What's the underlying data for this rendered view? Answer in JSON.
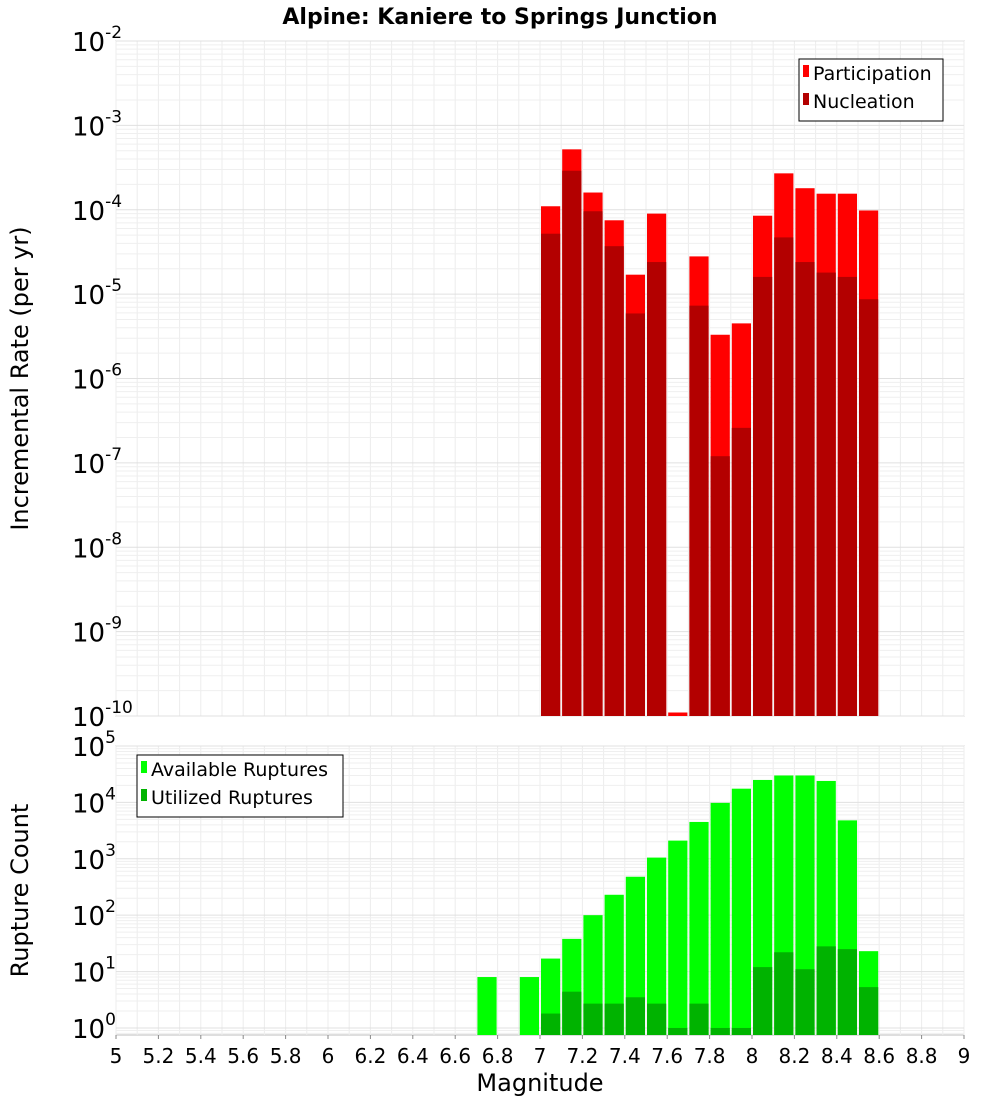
{
  "chart_data": [
    {
      "type": "bar",
      "title": "Alpine: Kaniere to Springs Junction",
      "xlabel": "",
      "ylabel": "Incremental Rate (per yr)",
      "y_scale": "log",
      "ylim": [
        1e-10,
        0.01
      ],
      "xlim": [
        5,
        9
      ],
      "bin_width": 0.1,
      "grid": true,
      "legend_position": "top-right",
      "y_tick_exponents": [
        -10,
        -9,
        -8,
        -7,
        -6,
        -5,
        -4,
        -3,
        -2
      ],
      "x_centers": [
        7.05,
        7.15,
        7.25,
        7.35,
        7.45,
        7.55,
        7.65,
        7.75,
        7.85,
        7.95,
        8.05,
        8.15,
        8.25,
        8.35,
        8.45,
        8.55
      ],
      "series": [
        {
          "name": "Participation",
          "color": "#ff0000",
          "values": [
            0.00011,
            0.00052,
            0.00016,
            7.5e-05,
            1.7e-05,
            9e-05,
            1.1e-10,
            2.8e-05,
            3.3e-06,
            4.5e-06,
            8.5e-05,
            0.00027,
            0.00018,
            0.000155,
            0.000155,
            9.8e-05
          ]
        },
        {
          "name": "Nucleation",
          "color": "#b30000",
          "values": [
            5.2e-05,
            0.00029,
            9.6e-05,
            3.7e-05,
            5.9e-06,
            2.4e-05,
            null,
            7.3e-06,
            1.2e-07,
            2.6e-07,
            1.6e-05,
            4.7e-05,
            2.4e-05,
            1.8e-05,
            1.6e-05,
            8.7e-06
          ]
        }
      ]
    },
    {
      "type": "bar",
      "title": "",
      "xlabel": "Magnitude",
      "ylabel": "Rupture Count",
      "y_scale": "log",
      "ylim": [
        0.75,
        100000
      ],
      "xlim": [
        5,
        9
      ],
      "bin_width": 0.1,
      "grid": true,
      "legend_position": "top-left",
      "y_tick_exponents": [
        0,
        1,
        2,
        3,
        4,
        5
      ],
      "x_tick_labels": [
        "5",
        "5.2",
        "5.4",
        "5.6",
        "5.8",
        "6",
        "6.2",
        "6.4",
        "6.6",
        "6.8",
        "7",
        "7.2",
        "7.4",
        "7.6",
        "7.8",
        "8",
        "8.2",
        "8.4",
        "8.6",
        "8.8",
        "9"
      ],
      "x_centers": [
        6.75,
        6.95,
        7.05,
        7.15,
        7.25,
        7.35,
        7.45,
        7.55,
        7.65,
        7.75,
        7.85,
        7.95,
        8.05,
        8.15,
        8.25,
        8.35,
        8.45,
        8.55
      ],
      "series": [
        {
          "name": "Available Ruptures",
          "color": "#00ff00",
          "values": [
            8,
            8,
            17,
            38,
            100,
            230,
            480,
            1050,
            2100,
            4500,
            9800,
            17500,
            25000,
            30000,
            30000,
            24000,
            4800,
            23
          ]
        },
        {
          "name": "Utilized Ruptures",
          "color": "#00b300",
          "values": [
            null,
            null,
            1.8,
            4.4,
            2.7,
            2.7,
            3.5,
            2.7,
            1,
            2.7,
            1,
            1,
            12,
            22,
            11,
            28,
            25,
            5.3
          ]
        }
      ]
    }
  ]
}
